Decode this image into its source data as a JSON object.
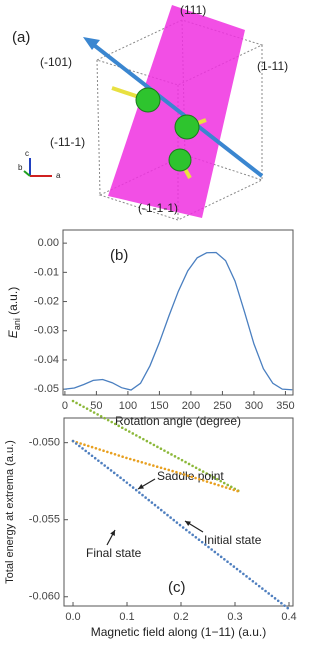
{
  "illustration": {
    "label": "(a)",
    "planes": [
      "(111)",
      "(-101)",
      "(1-11)",
      "(-11-1)",
      "(-1-1-1)"
    ],
    "axes": [
      "c",
      "b",
      "a"
    ]
  },
  "chart_data": [
    {
      "type": "line",
      "label": "(b)",
      "xlabel": "Rotation angle (degree)",
      "ylabel_parts": [
        "E",
        "ani",
        " (a.u.)"
      ],
      "x": [
        0,
        15,
        30,
        45,
        60,
        75,
        90,
        105,
        120,
        135,
        150,
        165,
        180,
        195,
        210,
        225,
        240,
        255,
        270,
        285,
        300,
        315,
        330,
        345,
        360
      ],
      "series": [
        {
          "color": "#4a7fc0",
          "values": [
            -0.05,
            -0.0496,
            -0.0484,
            -0.047,
            -0.0467,
            -0.0478,
            -0.0495,
            -0.0503,
            -0.048,
            -0.042,
            -0.034,
            -0.025,
            -0.0165,
            -0.0095,
            -0.005,
            -0.0033,
            -0.0032,
            -0.006,
            -0.013,
            -0.0235,
            -0.0345,
            -0.043,
            -0.048,
            -0.05,
            -0.0502
          ]
        }
      ],
      "xlim": [
        -3,
        362
      ],
      "ylim": [
        -0.052,
        0.0045
      ],
      "xticks": [
        0,
        50,
        100,
        150,
        200,
        250,
        300,
        350
      ],
      "yticks": [
        {
          "value": 0,
          "label": "0.00"
        },
        -0.01,
        -0.02,
        -0.03,
        -0.04,
        -0.05
      ]
    },
    {
      "type": "line",
      "label": "(c)",
      "xlabel": "Magnetic field along (1−11) (a.u.)",
      "ylabel": "Total energy at extrema (a.u.)",
      "series": [
        {
          "name": "Saddle point",
          "color": "#8cb83a",
          "x": [
            0,
            0.05,
            0.1,
            0.15,
            0.2,
            0.25,
            0.3,
            0.31
          ],
          "values": [
            -0.0473,
            -0.04825,
            -0.0492,
            -0.05015,
            -0.0511,
            -0.05205,
            -0.053,
            -0.0532
          ]
        },
        {
          "name": "Initial state",
          "color": "#e8a020",
          "x": [
            0,
            0.1,
            0.2,
            0.31
          ],
          "values": [
            -0.0499,
            -0.051,
            -0.052,
            -0.0532
          ]
        },
        {
          "name": "Final state",
          "color": "#4f7fbf",
          "x": [
            0,
            0.1,
            0.2,
            0.3,
            0.4
          ],
          "values": [
            -0.0499,
            -0.0526,
            -0.0554,
            -0.0581,
            -0.0608
          ]
        }
      ],
      "xlim": [
        -0.0167,
        0.4074
      ],
      "ylim": [
        -0.0606,
        -0.0484
      ],
      "xticks": [
        {
          "value": 0,
          "label": "0.0"
        },
        0.1,
        0.2,
        0.3,
        0.4
      ],
      "yticks": [
        {
          "value": -0.05,
          "label": "-0.050"
        },
        {
          "value": -0.055,
          "label": "-0.055"
        },
        {
          "value": -0.06,
          "label": "-0.060"
        }
      ]
    }
  ]
}
